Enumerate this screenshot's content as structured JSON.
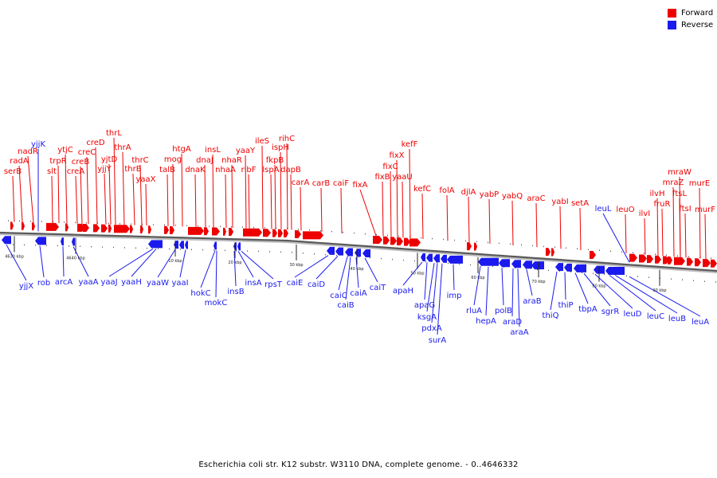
{
  "legend": {
    "forward_label": "Forward",
    "reverse_label": "Reverse",
    "forward_color": "#ee0000",
    "reverse_color": "#1a1aee"
  },
  "caption": "Escherichia coli str. K12 substr. W3110 DNA, complete genome. - 0..4646332",
  "scale_labels": [
    "4630 kbp",
    "4640 kbp",
    "10 kbp",
    "20 kbp",
    "30 kbp",
    "40 kbp",
    "50 kbp",
    "60 kbp",
    "70 kbp",
    "80 kbp",
    "90 kbp"
  ],
  "forward_genes": [
    "serB",
    "radA",
    "nadR",
    "slt",
    "trpR",
    "ytjC",
    "creA",
    "creB",
    "creC",
    "creD",
    "yjtD",
    "yjjY",
    "thrL",
    "thrA",
    "thrB",
    "thrC",
    "yaaX",
    "mog",
    "htgA",
    "talB",
    "dnaK",
    "dnaJ",
    "insL",
    "nhaA",
    "nhaR",
    "yaaY",
    "ribF",
    "ileS",
    "lspA",
    "fkpB",
    "ispH",
    "rihC",
    "dapB",
    "carA",
    "carB",
    "caiF",
    "fixA",
    "fixB",
    "fixC",
    "fixX",
    "yaaU",
    "kefF",
    "kefC",
    "folA",
    "djlA",
    "yabP",
    "yabQ",
    "araC",
    "yabI",
    "setA",
    "leuO",
    "ilvI",
    "ilvH",
    "fruR",
    "mraZ",
    "mraW",
    "ftsL",
    "ftsI",
    "murE",
    "murF"
  ],
  "reverse_genes": [
    "yjjK",
    "yjjX",
    "rob",
    "arcA",
    "yaaA",
    "yaaJ",
    "yaaH",
    "yaaW",
    "yaaI",
    "hokC",
    "mokC",
    "insB",
    "insA",
    "rpsT",
    "caiE",
    "caiD",
    "caiC",
    "caiB",
    "caiA",
    "caiT",
    "apaH",
    "apaG",
    "ksgA",
    "pdxA",
    "surA",
    "imp",
    "rluA",
    "hepA",
    "polB",
    "araD",
    "araA",
    "araB",
    "thiQ",
    "thiP",
    "tbpA",
    "sgrR",
    "leuD",
    "leuC",
    "leuB",
    "leuA",
    "leuL"
  ]
}
